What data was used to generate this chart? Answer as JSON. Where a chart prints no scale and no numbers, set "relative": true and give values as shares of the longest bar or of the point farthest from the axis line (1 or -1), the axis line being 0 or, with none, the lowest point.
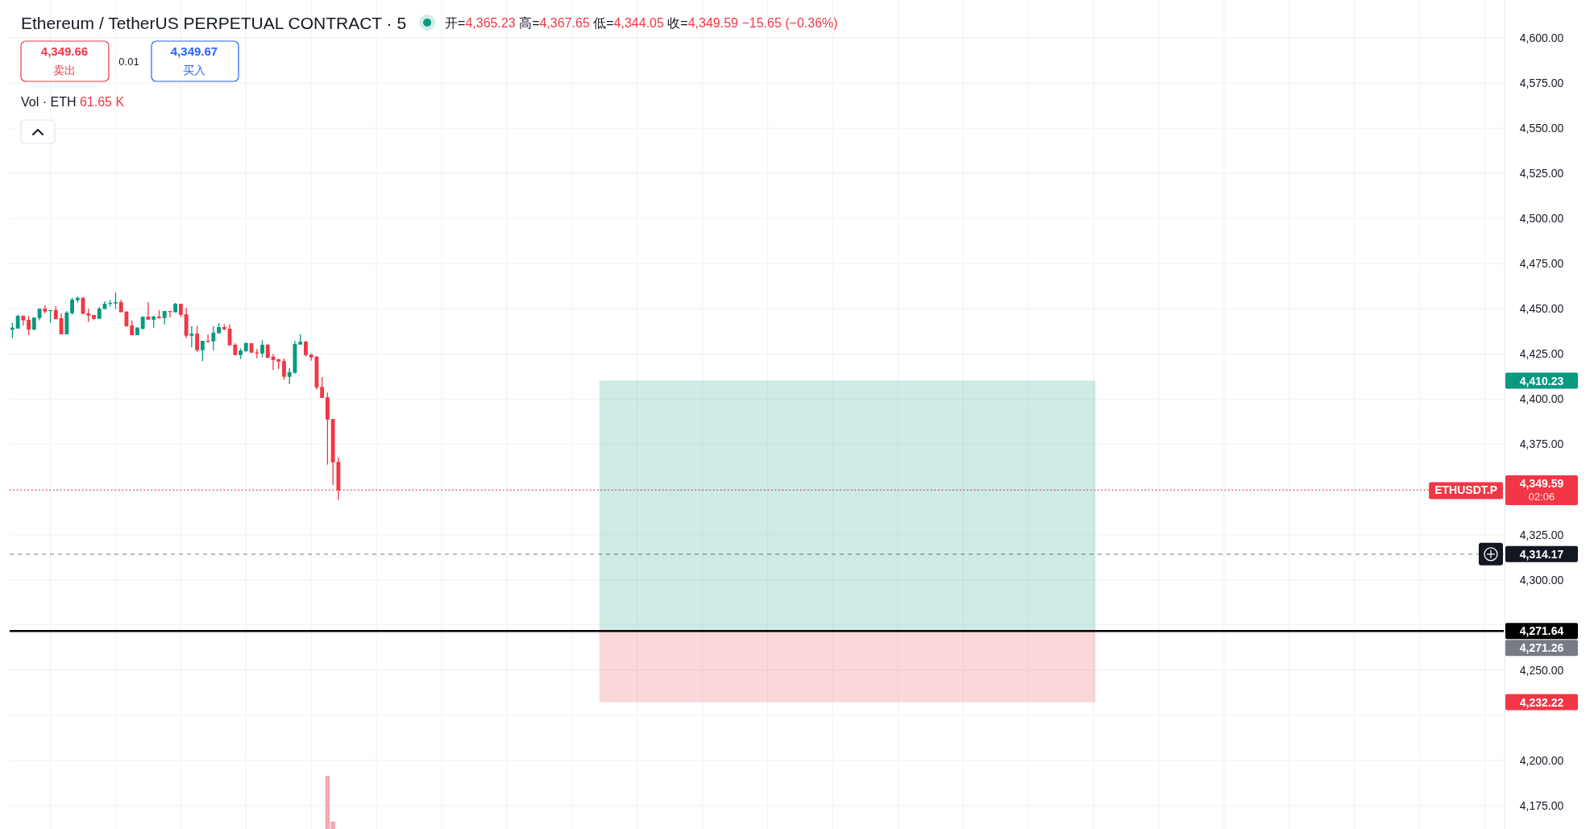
{
  "chart_data": [
    {
      "type": "candlestick",
      "title": "Ethereum / TetherUS PERPETUAL CONTRACT · 5",
      "subtitle": "开=4,365.23 高=4,367.65 低=4,344.05 收=4,349.59 −15.65 (−0.36%)",
      "categories": [
        null,
        null,
        null,
        null,
        null,
        null,
        null,
        null,
        null,
        null,
        null,
        null,
        null,
        null,
        null,
        null,
        null,
        null,
        null,
        null,
        null,
        null,
        null,
        null,
        null,
        null,
        null,
        null,
        null,
        null,
        null,
        null,
        null,
        null,
        null,
        null,
        null,
        null,
        null,
        null,
        null,
        null,
        null,
        null,
        null,
        null,
        null,
        null,
        null,
        null,
        null,
        null,
        null,
        null,
        null,
        null,
        null,
        null,
        null,
        null,
        null,
        null,
        null,
        null,
        null,
        null,
        null,
        null,
        null,
        null,
        null,
        null,
        null,
        null,
        null,
        null,
        null,
        null,
        null,
        null,
        null,
        null,
        null,
        null,
        null,
        null,
        null,
        null,
        null,
        null,
        null,
        null,
        null,
        null,
        null,
        null,
        null,
        null,
        null,
        null,
        null,
        null,
        null,
        null,
        null,
        null,
        null,
        null,
        null,
        null,
        null,
        null,
        null,
        null,
        null,
        null,
        null,
        null,
        null,
        null,
        null,
        null,
        null,
        null,
        null,
        null,
        null,
        null,
        null,
        null,
        null,
        null,
        null,
        null,
        null,
        null,
        null,
        null,
        null,
        null,
        null,
        null,
        null,
        null,
        null,
        null,
        null,
        null,
        null,
        null,
        null,
        null,
        null,
        null,
        null,
        null,
        null,
        null,
        null,
        null,
        null,
        null,
        null,
        null,
        null,
        null,
        null,
        null,
        null,
        null,
        null,
        null,
        null,
        null,
        null,
        null,
        null,
        null,
        null,
        null,
        null,
        null,
        null,
        null,
        null,
        null,
        null,
        null,
        null,
        null,
        null,
        null,
        null,
        null,
        null,
        null,
        null,
        null,
        null,
        null,
        null,
        null,
        null,
        null,
        null,
        null,
        null,
        null,
        null,
        null,
        null,
        null,
        null,
        null,
        null,
        null,
        null,
        null,
        null,
        null,
        null,
        null,
        null,
        null,
        null,
        null,
        null,
        null,
        null,
        null,
        null,
        null,
        null,
        null,
        null,
        null,
        null,
        null,
        null,
        null,
        null,
        null,
        null,
        null,
        null,
        null,
        null,
        null,
        null,
        null,
        null,
        null,
        null,
        null,
        null,
        null,
        null,
        null,
        null,
        null,
        null,
        null,
        null,
        null,
        null,
        null,
        null,
        null,
        null,
        null,
        null,
        null,
        null,
        null,
        null
      ],
      "ohlc": [
        [
          4438.4,
          4442.3,
          4433.8,
          4439.6
        ],
        [
          4439.1,
          4446.7,
          4439.1,
          4446.1
        ],
        [
          4446.1,
          4446.4,
          4440.8,
          4443.6
        ],
        [
          4443.9,
          4446.1,
          4435.4,
          4438.5
        ],
        [
          4438.5,
          4445.2,
          4438.1,
          4445.2
        ],
        [
          4444.9,
          4450.1,
          4443.6,
          4450.1
        ],
        [
          4450.1,
          4451.9,
          4447.5,
          4448.5
        ],
        [
          4449.0,
          4449.3,
          4442.3,
          4449.3
        ],
        [
          4449.3,
          4451.5,
          4444.3,
          4444.3
        ],
        [
          4444.8,
          4447.5,
          4435.9,
          4435.9
        ],
        [
          4435.9,
          4448.8,
          4435.9,
          4447.9
        ],
        [
          4447.6,
          4456.1,
          4446.7,
          4455.1
        ],
        [
          4454.8,
          4456.8,
          4453.4,
          4456.1
        ],
        [
          4456.1,
          4456.5,
          4447.2,
          4447.2
        ],
        [
          4447.5,
          4450.1,
          4442.7,
          4446.3
        ],
        [
          4446.6,
          4446.6,
          4443.6,
          4444.5
        ],
        [
          4444.5,
          4451.2,
          4444.5,
          4450.1
        ],
        [
          4449.9,
          4454.2,
          4449.9,
          4452.8
        ],
        [
          4453.0,
          4454.9,
          4451.2,
          4453.3
        ],
        [
          4453.0,
          4459.1,
          4449.9,
          4453.7
        ],
        [
          4453.7,
          4455.1,
          4448.1,
          4448.1
        ],
        [
          4448.4,
          4448.8,
          4440.3,
          4440.3
        ],
        [
          4440.8,
          4443.6,
          4435.4,
          4435.4
        ],
        [
          4435.4,
          4439.9,
          4435.4,
          4439.6
        ],
        [
          4439.0,
          4445.7,
          4438.5,
          4445.7
        ],
        [
          4445.7,
          4453.7,
          4444.0,
          4444.0
        ],
        [
          4444.0,
          4446.3,
          4439.6,
          4445.7
        ],
        [
          4445.7,
          4449.3,
          4444.5,
          4444.9
        ],
        [
          4444.9,
          4448.8,
          4441.4,
          4448.8
        ],
        [
          4448.8,
          4448.8,
          4445.4,
          4448.5
        ],
        [
          4448.1,
          4453.3,
          4448.1,
          4452.8
        ],
        [
          4452.8,
          4452.8,
          4445.4,
          4446.7
        ],
        [
          4447.0,
          4450.6,
          4433.8,
          4435.1
        ],
        [
          4435.1,
          4440.3,
          4428.7,
          4436.3
        ],
        [
          4436.3,
          4440.6,
          4426.2,
          4427.1
        ],
        [
          4427.1,
          4432.3,
          4421.1,
          4432.3
        ],
        [
          4432.3,
          4435.9,
          4431.1,
          4432.0
        ],
        [
          4432.0,
          4440.3,
          4427.1,
          4436.8
        ],
        [
          4436.5,
          4442.1,
          4436.5,
          4439.9
        ],
        [
          4439.9,
          4441.5,
          4438.1,
          4438.7
        ],
        [
          4439.0,
          4441.5,
          4429.8,
          4429.8
        ],
        [
          4430.1,
          4431.0,
          4424.4,
          4424.4
        ],
        [
          4424.4,
          4428.1,
          4422.2,
          4426.9
        ],
        [
          4426.6,
          4431.4,
          4426.2,
          4431.0
        ],
        [
          4431.0,
          4431.0,
          4425.7,
          4425.7
        ],
        [
          4425.9,
          4427.8,
          4422.6,
          4425.6
        ],
        [
          4425.3,
          4432.7,
          4423.1,
          4430.1
        ],
        [
          4430.1,
          4430.5,
          4422.6,
          4422.9
        ],
        [
          4423.5,
          4425.0,
          4416.2,
          4421.7
        ],
        [
          4422.0,
          4422.5,
          4416.7,
          4420.8
        ],
        [
          4421.1,
          4422.5,
          4410.6,
          4412.4
        ],
        [
          4412.4,
          4417.1,
          4408.3,
          4414.9
        ],
        [
          4414.6,
          4432.3,
          4414.1,
          4430.5
        ],
        [
          4430.2,
          4435.9,
          4430.2,
          4431.8
        ],
        [
          4431.8,
          4432.3,
          4423.5,
          4424.4
        ],
        [
          4424.7,
          4425.1,
          4421.3,
          4423.1
        ],
        [
          4423.5,
          4424.0,
          4405.2,
          4406.5
        ],
        [
          4406.8,
          4412.2,
          4400.7,
          4400.7
        ],
        [
          4401.0,
          4403.7,
          4363.7,
          4388.7
        ],
        [
          4389.0,
          4389.0,
          4352.5,
          4365.0
        ],
        [
          4365.23,
          4367.65,
          4344.05,
          4349.59
        ],
        null,
        null,
        null,
        null,
        null,
        null,
        null,
        null,
        null,
        null,
        null,
        null,
        null,
        null,
        null,
        null,
        null,
        null,
        null,
        null,
        null,
        null,
        null,
        null,
        null,
        null,
        null,
        null,
        null,
        null,
        null,
        null,
        null,
        null,
        null,
        null,
        null,
        null,
        null,
        null,
        null,
        null,
        null,
        null,
        null,
        null,
        null,
        null,
        null,
        null,
        null,
        null,
        null,
        null,
        null,
        null,
        null,
        null,
        null,
        null,
        null,
        null,
        null,
        null,
        null,
        null,
        null,
        null,
        null,
        null,
        null,
        null,
        null,
        null,
        null,
        null,
        null,
        null,
        null,
        null,
        null,
        null,
        null,
        null,
        null,
        null,
        null,
        null,
        null,
        null,
        null,
        null,
        null,
        null,
        null,
        null,
        null,
        null,
        null,
        null,
        null,
        null,
        null,
        null,
        null,
        null,
        null,
        null,
        null,
        null,
        null,
        null,
        null,
        null,
        null,
        null,
        null,
        null,
        null,
        null,
        null,
        null,
        null,
        null,
        null,
        null,
        null,
        null,
        null,
        null,
        null,
        null,
        null,
        null,
        null,
        null,
        null,
        null,
        null,
        null,
        null,
        null,
        null,
        null,
        null,
        null,
        null,
        null,
        null,
        null,
        null,
        null,
        null,
        null,
        null,
        null,
        null,
        null,
        null,
        null,
        null,
        null,
        null,
        null,
        null,
        null,
        null,
        null,
        null,
        null,
        null,
        null,
        null,
        null,
        null,
        null,
        null,
        null,
        null,
        null,
        null,
        null,
        null,
        null,
        null,
        null,
        null,
        null,
        null,
        null,
        null,
        null,
        null,
        null,
        null,
        null,
        null,
        null,
        null,
        null,
        null,
        null,
        null,
        null,
        null,
        null,
        null,
        null,
        null,
        null,
        null,
        null,
        null,
        null
      ],
      "colors": [
        "#089981",
        "#089981",
        "#f23645",
        "#f23645",
        "#089981",
        "#089981",
        "#f23645",
        "#089981",
        "#f23645",
        "#f23645",
        "#089981",
        "#089981",
        "#089981",
        "#f23645",
        "#f23645",
        "#f23645",
        "#089981",
        "#089981",
        "#089981",
        "#089981",
        "#f23645",
        "#f23645",
        "#f23645",
        "#089981",
        "#089981",
        "#f23645",
        "#089981",
        "#f23645",
        "#089981",
        "#f23645",
        "#089981",
        "#f23645",
        "#f23645",
        "#089981",
        "#f23645",
        "#089981",
        "#f23645",
        "#089981",
        "#089981",
        "#f23645",
        "#f23645",
        "#f23645",
        "#089981",
        "#089981",
        "#f23645",
        "#f23645",
        "#089981",
        "#f23645",
        "#f23645",
        "#f23645",
        "#f23645",
        "#089981",
        "#089981",
        "#089981",
        "#f23645",
        "#f23645",
        "#f23645",
        "#f23645",
        "#f23645",
        "#f23645",
        "#f23645",
        null,
        null,
        null,
        null,
        null,
        null,
        null,
        null,
        null,
        null,
        null,
        null,
        null,
        null,
        null,
        null,
        null,
        null,
        null,
        null,
        null,
        null,
        null,
        null,
        null,
        null,
        null,
        null,
        null,
        null,
        null,
        null,
        null,
        null,
        null,
        null,
        null,
        null,
        null,
        null,
        null,
        null,
        null,
        null,
        null,
        null,
        null,
        null,
        null,
        null,
        null,
        null,
        null,
        null,
        null,
        null,
        null,
        null,
        null,
        null,
        null,
        null,
        null,
        null,
        null,
        null,
        null,
        null,
        null,
        null,
        null,
        null,
        null,
        null,
        null,
        null,
        null,
        null,
        null,
        null,
        null,
        null,
        null,
        null,
        null,
        null,
        null,
        null,
        null,
        null,
        null,
        null,
        null,
        null,
        null,
        null,
        null,
        null,
        null,
        null,
        null,
        null,
        null,
        null,
        null,
        null,
        null,
        null,
        null,
        null,
        null,
        null,
        null,
        null,
        null,
        null,
        null,
        null,
        null,
        null,
        null,
        null,
        null,
        null,
        null,
        null,
        null,
        null,
        null,
        null,
        null,
        null,
        null,
        null,
        null,
        null,
        null,
        null,
        null,
        null,
        null,
        null,
        null,
        null,
        null,
        null,
        null,
        null,
        null,
        null,
        null,
        null,
        null,
        null,
        null,
        null,
        null,
        null,
        null,
        null,
        null,
        null,
        null,
        null,
        null,
        null,
        null,
        null,
        null,
        null,
        null,
        null,
        null,
        null,
        null,
        null,
        null,
        null,
        null,
        null,
        null,
        null,
        null,
        null,
        null,
        null,
        null,
        null,
        null,
        null,
        null,
        null,
        null,
        null,
        null,
        null,
        null,
        null,
        null,
        null,
        null,
        null,
        null,
        null,
        null,
        null,
        null,
        null,
        null,
        null,
        null,
        null,
        null,
        null
      ],
      "ylim": [
        4162,
        4621
      ],
      "yticks": [
        {
          "value": 4175,
          "label": "4,175.00"
        },
        {
          "value": 4200,
          "label": "4,200.00"
        },
        {
          "value": 4225,
          "label": null
        },
        {
          "value": 4250,
          "label": "4,250.00"
        },
        {
          "value": 4275,
          "label": null
        },
        {
          "value": 4300,
          "label": "4,300.00"
        },
        {
          "value": 4325,
          "label": "4,325.00"
        },
        {
          "value": 4350,
          "label": null
        },
        {
          "value": 4375,
          "label": "4,375.00"
        },
        {
          "value": 4400,
          "label": "4,400.00"
        },
        {
          "value": 4425,
          "label": "4,425.00"
        },
        {
          "value": 4450,
          "label": "4,450.00"
        },
        {
          "value": 4475,
          "label": "4,475.00"
        },
        {
          "value": 4500,
          "label": "4,500.00"
        },
        {
          "value": 4525,
          "label": "4,525.00"
        },
        {
          "value": 4550,
          "label": "4,550.00"
        },
        {
          "value": 4575,
          "label": "4,575.00"
        },
        {
          "value": 4600,
          "label": "4,600.00"
        }
      ],
      "grid": true,
      "tick_labels": "y",
      "bands": [
        {
          "axis": "y",
          "from": 4271.26,
          "to": 4410.23,
          "color": "#089981"
        },
        {
          "axis": "y",
          "from": 4232.22,
          "to": 4271.26,
          "color": "#f23645"
        }
      ],
      "ref_lines": [
        {
          "axis": "y",
          "value": 4349.59,
          "label": "4,349.59\n02:06",
          "color": "#f23645",
          "line_style": "dotted"
        },
        {
          "axis": "y",
          "value": 4314.17,
          "label": "4,314.17",
          "color": "#131722",
          "line_style": "dashed"
        },
        {
          "axis": "y",
          "value": 4271.64,
          "label": "4,271.64",
          "color": "#000000",
          "line_style": "solid"
        }
      ],
      "annotations": [
        {
          "text": "ETHUSDT.P",
          "y": 4349.59
        },
        "4,349.66",
        "卖出",
        "0.01",
        "4,349.67",
        "买入",
        "Vol · ETH 61.65 K",
        "4,410.23",
        "4,271.26",
        "4,232.22"
      ]
    },
    {
      "type": "bar",
      "relative": true,
      "color": "#f7a9b0",
      "categories": [
        null,
        null,
        null,
        null,
        null,
        null,
        null,
        null,
        null,
        null,
        null,
        null,
        null,
        null,
        null,
        null,
        null,
        null,
        null,
        null,
        null,
        null,
        null,
        null,
        null,
        null,
        null,
        null,
        null,
        null,
        null,
        null,
        null,
        null,
        null,
        null,
        null,
        null,
        null,
        null,
        null,
        null,
        null,
        null,
        null,
        null,
        null,
        null,
        null,
        null,
        null,
        null,
        null,
        null,
        null,
        null,
        null,
        null,
        null,
        null,
        null,
        null,
        null,
        null,
        null,
        null,
        null,
        null,
        null,
        null,
        null,
        null,
        null,
        null,
        null,
        null,
        null,
        null,
        null,
        null,
        null,
        null,
        null,
        null,
        null,
        null,
        null,
        null,
        null,
        null,
        null,
        null,
        null,
        null,
        null,
        null,
        null,
        null,
        null,
        null,
        null,
        null,
        null,
        null,
        null,
        null,
        null,
        null,
        null,
        null,
        null,
        null,
        null,
        null,
        null,
        null,
        null,
        null,
        null,
        null,
        null,
        null,
        null,
        null,
        null,
        null,
        null,
        null,
        null,
        null,
        null,
        null,
        null,
        null,
        null,
        null,
        null,
        null,
        null,
        null,
        null,
        null,
        null,
        null,
        null,
        null,
        null,
        null,
        null,
        null,
        null,
        null,
        null,
        null,
        null,
        null,
        null,
        null,
        null,
        null,
        null,
        null,
        null,
        null,
        null,
        null,
        null,
        null,
        null,
        null,
        null,
        null,
        null,
        null,
        null,
        null,
        null,
        null,
        null,
        null,
        null,
        null,
        null,
        null,
        null,
        null,
        null,
        null,
        null,
        null,
        null,
        null,
        null,
        null,
        null,
        null,
        null,
        null,
        null,
        null,
        null,
        null,
        null,
        null,
        null,
        null,
        null,
        null,
        null,
        null,
        null,
        null,
        null,
        null,
        null,
        null,
        null,
        null,
        null,
        null,
        null,
        null,
        null,
        null,
        null,
        null,
        null,
        null,
        null,
        null,
        null,
        null,
        null,
        null,
        null,
        null,
        null,
        null,
        null,
        null,
        null,
        null,
        null,
        null,
        null,
        null,
        null,
        null,
        null,
        null,
        null,
        null,
        null,
        null,
        null,
        null,
        null,
        null,
        null,
        null,
        null,
        null,
        null,
        null,
        null,
        null,
        null,
        null,
        null,
        null,
        null,
        null,
        null,
        null,
        null
      ],
      "values": [
        null,
        null,
        null,
        null,
        null,
        null,
        null,
        null,
        null,
        null,
        null,
        null,
        null,
        null,
        null,
        null,
        null,
        null,
        null,
        null,
        null,
        null,
        null,
        null,
        null,
        null,
        null,
        null,
        null,
        null,
        null,
        null,
        null,
        null,
        null,
        null,
        null,
        null,
        null,
        null,
        null,
        null,
        null,
        null,
        null,
        null,
        null,
        null,
        null,
        null,
        null,
        null,
        null,
        null,
        null,
        null,
        null,
        null,
        1,
        0.14,
        null,
        null,
        null,
        null,
        null,
        null,
        null,
        null,
        null,
        null,
        null,
        null,
        null,
        null,
        null,
        null,
        null,
        null,
        null,
        null,
        null,
        null,
        null,
        null,
        null,
        null,
        null,
        null,
        null,
        null,
        null,
        null,
        null,
        null,
        null,
        null,
        null,
        null,
        null,
        null,
        null,
        null,
        null,
        null,
        null,
        null,
        null,
        null,
        null,
        null,
        null,
        null,
        null,
        null,
        null,
        null,
        null,
        null,
        null,
        null,
        null,
        null,
        null,
        null,
        null,
        null,
        null,
        null,
        null,
        null,
        null,
        null,
        null,
        null,
        null,
        null,
        null,
        null,
        null,
        null,
        null,
        null,
        null,
        null,
        null,
        null,
        null,
        null,
        null,
        null,
        null,
        null,
        null,
        null,
        null,
        null,
        null,
        null,
        null,
        null,
        null,
        null,
        null,
        null,
        null,
        null,
        null,
        null,
        null,
        null,
        null,
        null,
        null,
        null,
        null,
        null,
        null,
        null,
        null,
        null,
        null,
        null,
        null,
        null,
        null,
        null,
        null,
        null,
        null,
        null,
        null,
        null,
        null,
        null,
        null,
        null,
        null,
        null,
        null,
        null,
        null,
        null,
        null,
        null,
        null,
        null,
        null,
        null,
        null,
        null,
        null,
        null,
        null,
        null,
        null,
        null,
        null,
        null,
        null,
        null,
        null,
        null,
        null,
        null,
        null,
        null,
        null,
        null,
        null,
        null,
        null,
        null,
        null,
        null,
        null,
        null,
        null,
        null,
        null,
        null,
        null,
        null,
        null,
        null,
        null,
        null,
        null,
        null,
        null,
        null,
        null,
        null,
        null,
        null,
        null,
        null,
        null,
        null,
        null,
        null,
        null,
        null,
        null,
        null,
        null,
        null,
        null,
        null,
        null,
        null,
        null,
        null,
        null,
        null,
        null
      ]
    }
  ]
}
